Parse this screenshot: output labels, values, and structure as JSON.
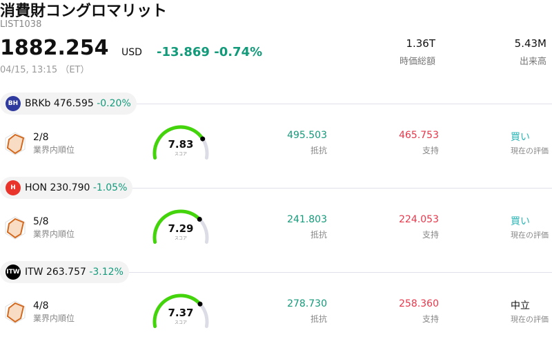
{
  "header": {
    "title": "消費財コングロマリット",
    "code": "LIST1038",
    "price": "1882.254",
    "currency": "USD",
    "change": "-13.869",
    "change_pct": "-0.74%",
    "time": "04/15, 13:15 （ET）",
    "market_cap": "1.36T",
    "market_cap_label": "時価総額",
    "volume": "5.43M",
    "volume_label": "出来高"
  },
  "rows": [
    {
      "logo": "BH",
      "logo_color": "#2e3a9e",
      "ticker": "BRKb",
      "price": "476.595",
      "change": "-0.20%",
      "rank": "2/8",
      "rank_label": "業界内順位",
      "score": "7.83",
      "score_value": 7.83,
      "score_label": "スコア",
      "resistance": "495.503",
      "resistance_label": "抵抗",
      "support": "465.753",
      "support_label": "支持",
      "rating": "買い",
      "rating_label": "現在の評価",
      "rating_color": "#2bb5b5"
    },
    {
      "logo": "H",
      "logo_color": "#e8342a",
      "ticker": "HON",
      "price": "230.790",
      "change": "-1.05%",
      "rank": "5/8",
      "rank_label": "業界内順位",
      "score": "7.29",
      "score_value": 7.29,
      "score_label": "スコア",
      "resistance": "241.803",
      "resistance_label": "抵抗",
      "support": "224.053",
      "support_label": "支持",
      "rating": "買い",
      "rating_label": "現在の評価",
      "rating_color": "#2bb5b5"
    },
    {
      "logo": "ITW",
      "logo_color": "#000000",
      "ticker": "ITW",
      "price": "263.757",
      "change": "-3.12%",
      "rank": "4/8",
      "rank_label": "業界内順位",
      "score": "7.37",
      "score_value": 7.37,
      "score_label": "スコア",
      "resistance": "278.730",
      "resistance_label": "抵抗",
      "support": "258.360",
      "support_label": "支持",
      "rating": "中立",
      "rating_label": "現在の評価",
      "rating_color": "#111111"
    }
  ]
}
